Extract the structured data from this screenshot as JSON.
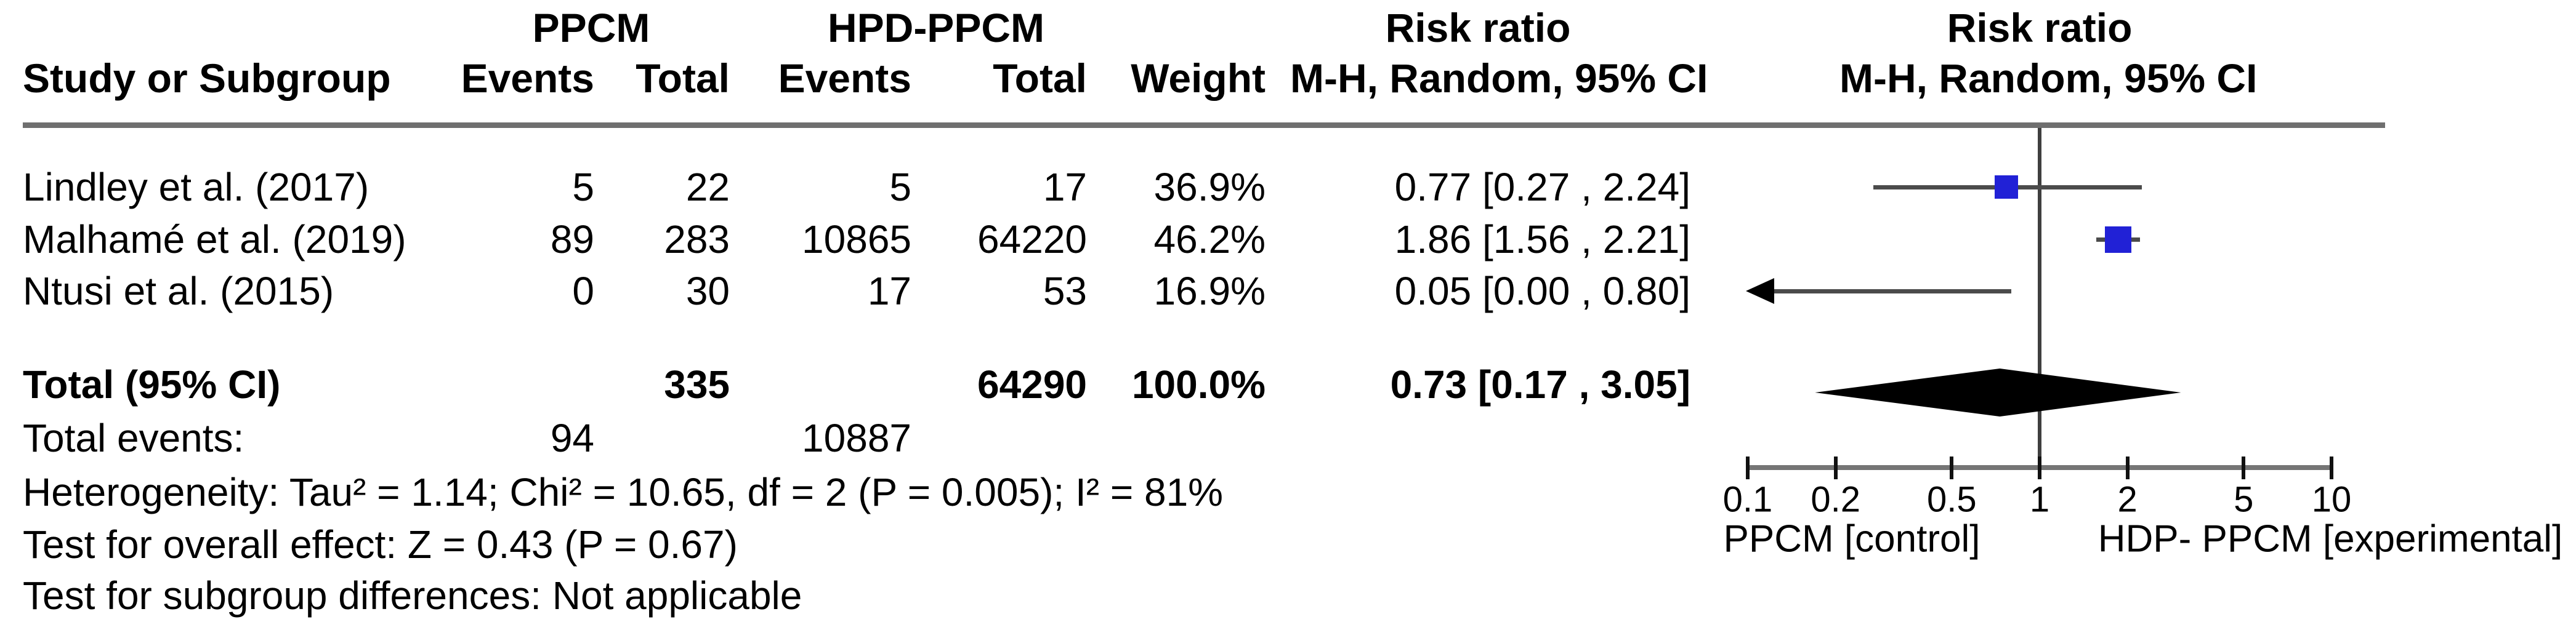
{
  "table": {
    "group_headers": {
      "ppcm": "PPCM",
      "hpd": "HPD-PPCM",
      "risk_ratio_text": "Risk ratio",
      "risk_ratio_plot": "Risk ratio"
    },
    "col_headers": {
      "study": "Study or Subgroup",
      "ppcm_events": "Events",
      "ppcm_total": "Total",
      "hpd_events": "Events",
      "hpd_total": "Total",
      "weight": "Weight",
      "mh_text": "M-H, Random, 95% CI",
      "mh_plot": "M-H, Random, 95% CI"
    },
    "rows": [
      {
        "study": "Lindley et al. (2017)",
        "ppcm_events": "5",
        "ppcm_total": "22",
        "hpd_events": "5",
        "hpd_total": "17",
        "weight": "36.9%",
        "rr_ci": "0.77 [0.27 , 2.24]"
      },
      {
        "study": "Malhamé et al. (2019)",
        "ppcm_events": "89",
        "ppcm_total": "283",
        "hpd_events": "10865",
        "hpd_total": "64220",
        "weight": "46.2%",
        "rr_ci": "1.86 [1.56 , 2.21]"
      },
      {
        "study": "Ntusi et al. (2015)",
        "ppcm_events": "0",
        "ppcm_total": "30",
        "hpd_events": "17",
        "hpd_total": "53",
        "weight": "16.9%",
        "rr_ci": "0.05 [0.00 , 0.80]"
      }
    ],
    "total_row": {
      "label": "Total (95% CI)",
      "ppcm_total": "335",
      "hpd_total": "64290",
      "weight": "100.0%",
      "rr_ci": "0.73 [0.17 , 3.05]"
    },
    "total_events_row": {
      "label": "Total events:",
      "ppcm_events": "94",
      "hpd_events": "10887"
    },
    "footnotes": [
      "Heterogeneity: Tau² = 1.14; Chi² = 10.65, df = 2 (P = 0.005); I² = 81%",
      "Test for overall effect: Z = 0.43 (P = 0.67)",
      "Test for subgroup differences: Not applicable"
    ]
  },
  "colors": {
    "square_blue": "#2121D6",
    "ci_line": "#4B4B4B",
    "diamond": "#000000",
    "arrow": "#000000",
    "axis_gray": "#757575",
    "separator_gray": "#6F6F6F",
    "null_line": "#3F3F3F",
    "text": "#000000",
    "background": "#FFFFFF"
  },
  "chart_data": {
    "type": "forest",
    "effect_measure": "Risk ratio",
    "method": "M-H, Random, 95% CI",
    "x_scale": "log10",
    "x_ticks": [
      0.1,
      0.2,
      0.5,
      1,
      2,
      5,
      10
    ],
    "x_tick_labels": [
      "0.1",
      "0.2",
      "0.5",
      "1",
      "2",
      "5",
      "10"
    ],
    "x_range": [
      0.1,
      10
    ],
    "null_line_value": 1,
    "studies": [
      {
        "name": "Lindley et al. (2017)",
        "ppcm_events": 5,
        "ppcm_total": 22,
        "hpd_events": 5,
        "hpd_total": 17,
        "weight_pct": 36.9,
        "rr": 0.77,
        "ci_low": 0.27,
        "ci_high": 2.24
      },
      {
        "name": "Malhamé et al. (2019)",
        "ppcm_events": 89,
        "ppcm_total": 283,
        "hpd_events": 10865,
        "hpd_total": 64220,
        "weight_pct": 46.2,
        "rr": 1.86,
        "ci_low": 1.56,
        "ci_high": 2.21
      },
      {
        "name": "Ntusi et al. (2015)",
        "ppcm_events": 0,
        "ppcm_total": 30,
        "hpd_events": 17,
        "hpd_total": 53,
        "weight_pct": 16.9,
        "rr": 0.05,
        "ci_low": 0.0,
        "ci_high": 0.8
      }
    ],
    "total": {
      "rr": 0.73,
      "ci_low": 0.17,
      "ci_high": 3.05,
      "weight_pct": 100.0,
      "ppcm_events": 94,
      "ppcm_total": 335,
      "hpd_events": 10887,
      "hpd_total": 64290,
      "heterogeneity": {
        "tau2": 1.14,
        "chi2": 10.65,
        "df": 2,
        "p": 0.005,
        "i2_pct": 81
      },
      "overall_effect": {
        "z": 0.43,
        "p": 0.67
      }
    },
    "axis_labels": {
      "left": "PPCM [control]",
      "right": "HDP- PPCM [experimental]"
    }
  }
}
